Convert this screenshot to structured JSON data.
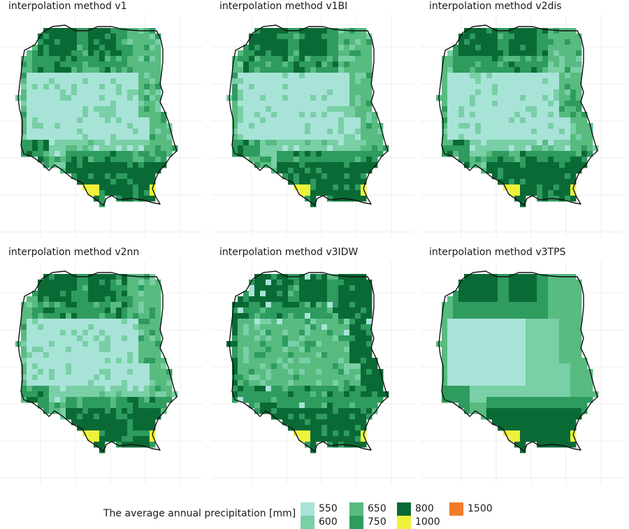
{
  "panels": [
    {
      "title": "interpolation method v1",
      "variant": "v1"
    },
    {
      "title": "interpolation method v1BI",
      "variant": "v1BI"
    },
    {
      "title": "interpolation method v2dis",
      "variant": "v2dis"
    },
    {
      "title": "interpolation method v2nn",
      "variant": "v2nn"
    },
    {
      "title": "interpolation method v3IDW",
      "variant": "v3IDW"
    },
    {
      "title": "interpolation method v3TPS",
      "variant": "v3TPS"
    }
  ],
  "legend": {
    "title": "The average annual precipitation [mm]",
    "classes": [
      {
        "label": "550",
        "color": "#a8e3d8"
      },
      {
        "label": "600",
        "color": "#79cfa6"
      },
      {
        "label": "650",
        "color": "#58bb80"
      },
      {
        "label": "750",
        "color": "#2e9b5f"
      },
      {
        "label": "800",
        "color": "#0a6a35"
      },
      {
        "label": "1000",
        "color": "#eef23a"
      },
      {
        "label": "1500",
        "color": "#f07b2a"
      }
    ]
  }
}
